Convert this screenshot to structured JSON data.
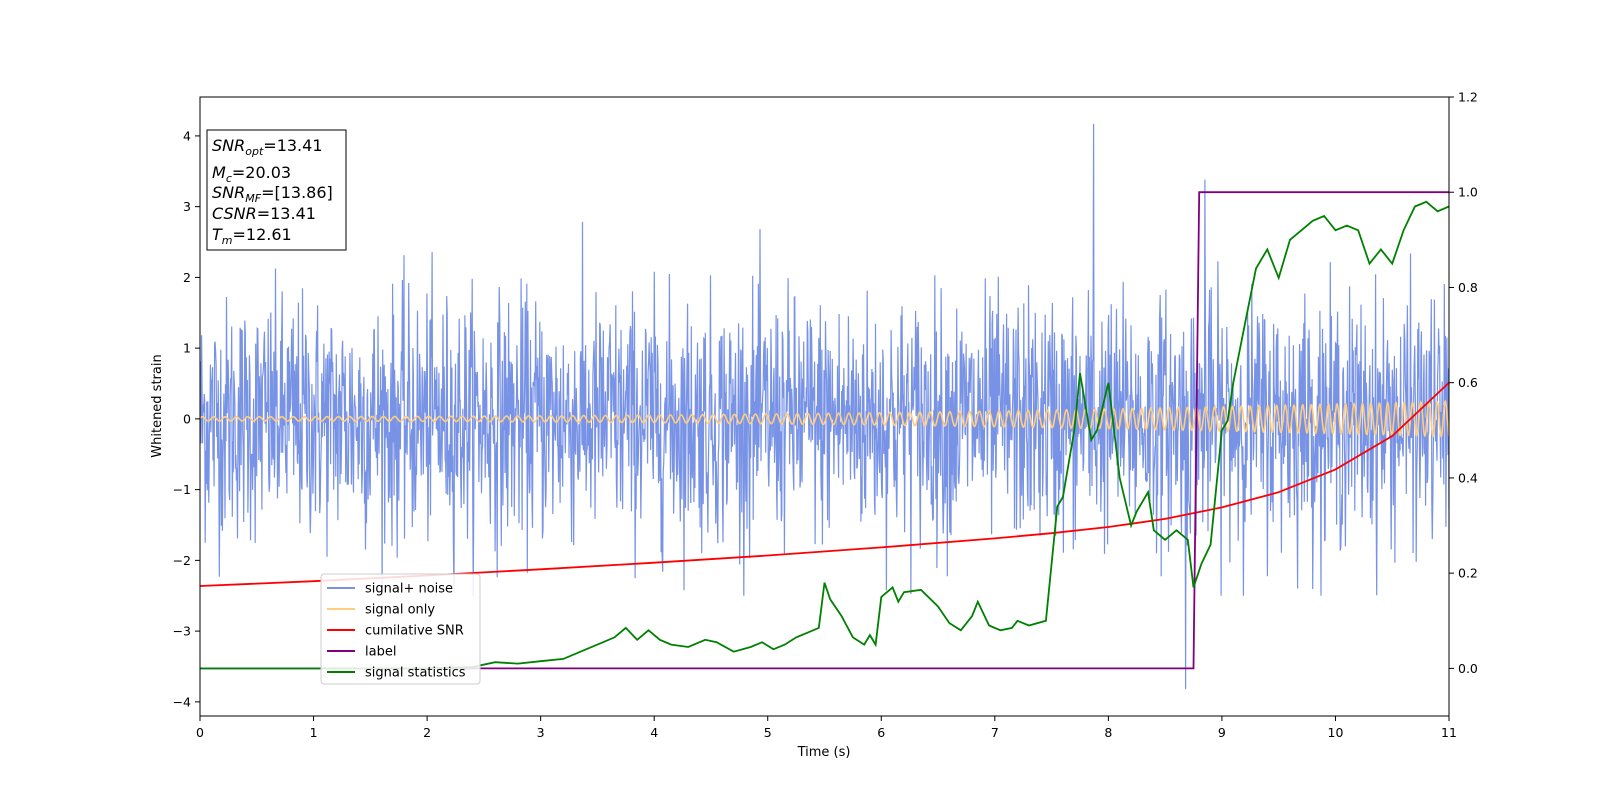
{
  "chart_data": {
    "type": "line",
    "xlabel": "Time (s)",
    "ylabel": "Whitened strain",
    "xlim": [
      0,
      11
    ],
    "ylim_left": [
      -4.2,
      4.55
    ],
    "ylim_right": [
      -0.1,
      1.2
    ],
    "x_ticks": [
      0,
      1,
      2,
      3,
      4,
      5,
      6,
      7,
      8,
      9,
      10,
      11
    ],
    "y_ticks_left": [
      -4,
      -3,
      -2,
      -1,
      0,
      1,
      2,
      3,
      4
    ],
    "y_ticks_right": [
      "0.0",
      "0.2",
      "0.4",
      "0.6",
      "0.8",
      "1.0",
      "1.2"
    ],
    "grid": false,
    "legend_position": "lower-left",
    "colors": {
      "signal_noise": "#7893e6",
      "signal_only": "#ffcc80",
      "cumulative_snr": "#ff0000",
      "label": "#800080",
      "signal_statistics": "#008000"
    },
    "series": [
      {
        "name": "signal+ noise",
        "axis": "left",
        "description_values": "Gaussian-like noise, amplitude mostly within ±2.5, spikes to 4.17 near t=7.87 and -3.82 near t=8.68",
        "noise_range": [
          -2.5,
          2.8
        ],
        "outliers": [
          [
            7.87,
            4.17
          ],
          [
            8.68,
            -3.82
          ],
          [
            8.85,
            3.38
          ]
        ]
      },
      {
        "name": "signal only",
        "axis": "left",
        "amplitude_start": 0.03,
        "amplitude_end": 0.25,
        "note_values": "chirp oscillation around 0, amplitude growing toward t=11"
      },
      {
        "name": "cumilative SNR",
        "axis": "right",
        "x": [
          0,
          1,
          2,
          3,
          4,
          5,
          6,
          7,
          7.5,
          8,
          8.5,
          9,
          9.5,
          10,
          10.5,
          11
        ],
        "y": [
          0.173,
          0.183,
          0.195,
          0.208,
          0.222,
          0.237,
          0.254,
          0.273,
          0.284,
          0.297,
          0.314,
          0.338,
          0.37,
          0.418,
          0.488,
          0.6
        ]
      },
      {
        "name": "label",
        "axis": "right",
        "x": [
          0,
          8.75,
          8.8,
          11
        ],
        "y": [
          0.0,
          0.0,
          1.0,
          1.0
        ]
      },
      {
        "name": "signal statistics",
        "axis": "right",
        "x": [
          0,
          0.5,
          1,
          1.5,
          2,
          2.4,
          2.6,
          2.8,
          3.0,
          3.2,
          3.4,
          3.55,
          3.65,
          3.75,
          3.85,
          3.95,
          4.05,
          4.15,
          4.3,
          4.45,
          4.55,
          4.7,
          4.85,
          4.95,
          5.05,
          5.15,
          5.25,
          5.35,
          5.45,
          5.5,
          5.55,
          5.65,
          5.75,
          5.85,
          5.9,
          5.95,
          6.0,
          6.1,
          6.15,
          6.2,
          6.35,
          6.5,
          6.6,
          6.7,
          6.8,
          6.85,
          6.95,
          7.05,
          7.15,
          7.2,
          7.3,
          7.45,
          7.55,
          7.6,
          7.7,
          7.75,
          7.85,
          7.9,
          8.0,
          8.1,
          8.2,
          8.25,
          8.35,
          8.4,
          8.5,
          8.6,
          8.7,
          8.75,
          8.82,
          8.9,
          9.0,
          9.05,
          9.1,
          9.2,
          9.3,
          9.4,
          9.5,
          9.6,
          9.7,
          9.8,
          9.9,
          10.0,
          10.1,
          10.2,
          10.3,
          10.4,
          10.5,
          10.6,
          10.7,
          10.8,
          10.9,
          11.0
        ],
        "y": [
          0.0,
          0.0,
          0.0,
          0.0,
          0.0,
          0.003,
          0.013,
          0.01,
          0.015,
          0.02,
          0.04,
          0.055,
          0.065,
          0.085,
          0.06,
          0.08,
          0.06,
          0.05,
          0.045,
          0.06,
          0.055,
          0.035,
          0.045,
          0.055,
          0.04,
          0.05,
          0.065,
          0.075,
          0.085,
          0.18,
          0.145,
          0.11,
          0.065,
          0.05,
          0.07,
          0.05,
          0.15,
          0.17,
          0.14,
          0.16,
          0.165,
          0.13,
          0.095,
          0.08,
          0.11,
          0.14,
          0.09,
          0.08,
          0.085,
          0.1,
          0.09,
          0.1,
          0.34,
          0.36,
          0.5,
          0.62,
          0.48,
          0.5,
          0.6,
          0.4,
          0.3,
          0.33,
          0.37,
          0.29,
          0.27,
          0.29,
          0.27,
          0.17,
          0.22,
          0.26,
          0.5,
          0.52,
          0.6,
          0.72,
          0.84,
          0.88,
          0.82,
          0.9,
          0.92,
          0.94,
          0.95,
          0.92,
          0.93,
          0.92,
          0.85,
          0.88,
          0.85,
          0.92,
          0.97,
          0.98,
          0.96,
          0.97
        ]
      }
    ],
    "legend": [
      "signal+ noise",
      "signal only",
      "cumilative SNR",
      "label",
      "signal statistics"
    ],
    "info_box": {
      "snr_opt": "=13.41",
      "mc": "=20.03",
      "snr_mf": "=[13.86]",
      "csnr": "=13.41",
      "tm": "=12.61"
    }
  }
}
